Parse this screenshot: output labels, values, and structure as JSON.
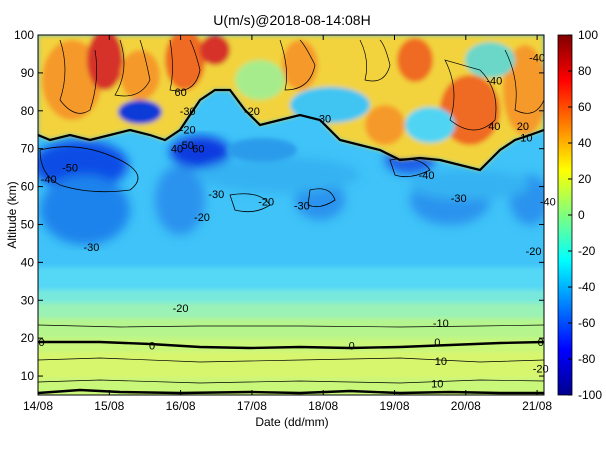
{
  "chart_data": {
    "type": "heatmap",
    "title": "U(m/s)@2018-08-14:08H",
    "xlabel": "Date (dd/mm)",
    "ylabel": "Altitude (km)",
    "x_ticks": [
      "14/08",
      "15/08",
      "16/08",
      "17/08",
      "18/08",
      "19/08",
      "20/08",
      "21/08"
    ],
    "x_range": [
      "14/08",
      "21/08 + ~0.1 day"
    ],
    "y_ticks": [
      10,
      20,
      30,
      40,
      50,
      60,
      70,
      80,
      90,
      100
    ],
    "ylim": [
      5,
      100
    ],
    "colorbar_ticks": [
      100,
      80,
      60,
      40,
      20,
      0,
      -20,
      -40,
      -60,
      -80,
      -100
    ],
    "colorbar_range": [
      -100,
      100
    ],
    "colormap": "jet",
    "contour_labels": [
      {
        "text": "-50",
        "day": 0.45,
        "alt": 65
      },
      {
        "text": "-40",
        "day": 0.15,
        "alt": 62
      },
      {
        "text": "-30",
        "day": 0.75,
        "alt": 44
      },
      {
        "text": "-20",
        "day": 2.0,
        "alt": 28
      },
      {
        "text": "-30",
        "day": 2.5,
        "alt": 58
      },
      {
        "text": "-20",
        "day": 2.3,
        "alt": 52
      },
      {
        "text": "-20",
        "day": 3.2,
        "alt": 56
      },
      {
        "text": "-30",
        "day": 3.7,
        "alt": 55
      },
      {
        "text": "-40",
        "day": 5.45,
        "alt": 63
      },
      {
        "text": "-30",
        "day": 5.9,
        "alt": 57
      },
      {
        "text": "-20",
        "day": 6.95,
        "alt": 43
      },
      {
        "text": "-40",
        "day": 7.15,
        "alt": 56
      },
      {
        "text": "-10",
        "day": 5.65,
        "alt": 24
      },
      {
        "text": "10",
        "day": 5.65,
        "alt": 14
      },
      {
        "text": "10",
        "day": 5.6,
        "alt": 8
      },
      {
        "text": "-20",
        "day": 7.05,
        "alt": 12
      },
      {
        "text": "0",
        "day": 0.05,
        "alt": 19
      },
      {
        "text": "0",
        "day": 1.6,
        "alt": 18
      },
      {
        "text": "0",
        "day": 4.4,
        "alt": 18
      },
      {
        "text": "0",
        "day": 5.6,
        "alt": 19
      },
      {
        "text": "0",
        "day": 7.05,
        "alt": 19
      },
      {
        "text": "-20",
        "day": 2.1,
        "alt": 75
      },
      {
        "text": "-30",
        "day": 2.1,
        "alt": 80
      },
      {
        "text": "-20",
        "day": 3.0,
        "alt": 80
      },
      {
        "text": "-30",
        "day": 4.0,
        "alt": 78
      },
      {
        "text": "-40",
        "day": 6.4,
        "alt": 88
      },
      {
        "text": "-40",
        "day": 7.0,
        "alt": 94
      },
      {
        "text": "60",
        "day": 2.0,
        "alt": 85
      },
      {
        "text": "40",
        "day": 1.95,
        "alt": 70
      },
      {
        "text": "50",
        "day": 2.1,
        "alt": 71
      },
      {
        "text": "60",
        "day": 2.25,
        "alt": 70
      },
      {
        "text": "40",
        "day": 6.4,
        "alt": 76
      },
      {
        "text": "20",
        "day": 6.8,
        "alt": 76
      },
      {
        "text": "10",
        "day": 6.85,
        "alt": 73
      }
    ]
  }
}
